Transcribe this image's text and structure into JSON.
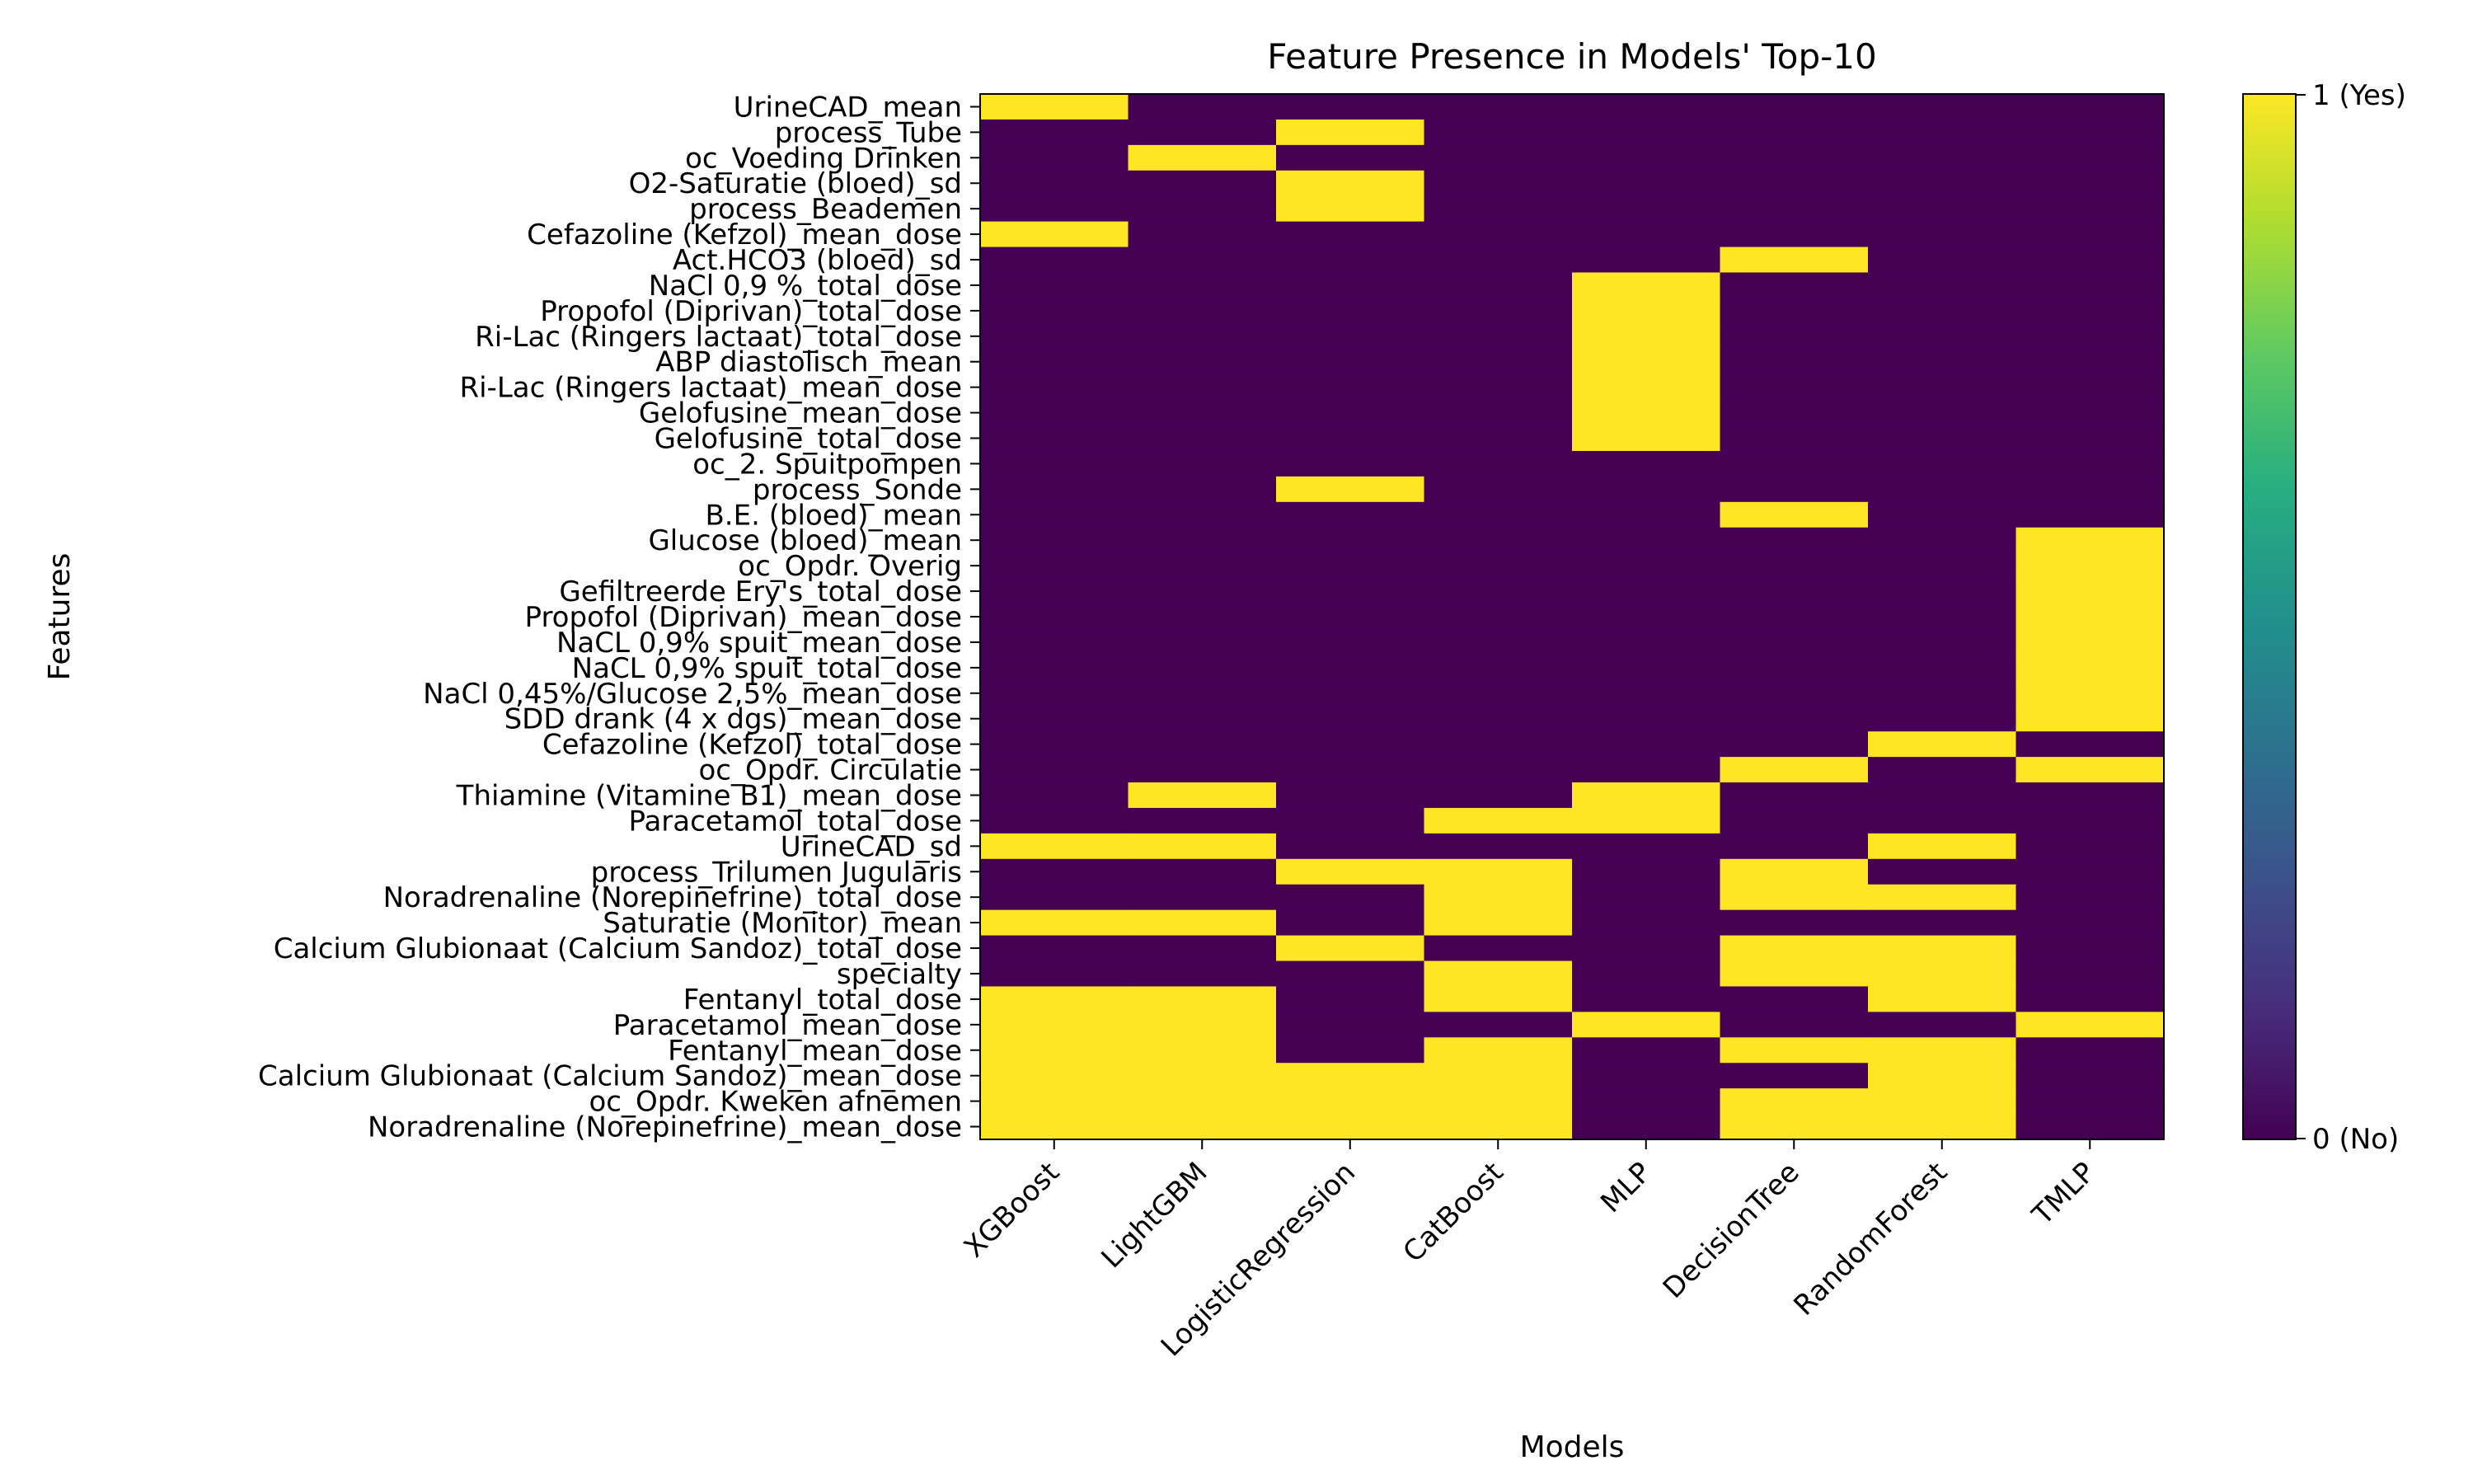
{
  "chart_data": {
    "type": "heatmap",
    "title": "Feature Presence in Models' Top-10",
    "xlabel": "Models",
    "ylabel": "Features",
    "models": [
      "XGBoost",
      "LightGBM",
      "LogisticRegression",
      "CatBoost",
      "MLP",
      "DecisionTree",
      "RandomForest",
      "TMLP"
    ],
    "features": [
      "UrineCAD_mean",
      "process_Tube",
      "oc_Voeding Drinken",
      "O2-Saturatie (bloed)_sd",
      "process_Beademen",
      "Cefazoline (Kefzol)_mean_dose",
      "Act.HCO3 (bloed)_sd",
      "NaCl 0,9 %_total_dose",
      "Propofol (Diprivan)_total_dose",
      "Ri-Lac (Ringers lactaat)_total_dose",
      "ABP diastolisch_mean",
      "Ri-Lac (Ringers lactaat)_mean_dose",
      "Gelofusine_mean_dose",
      "Gelofusine_total_dose",
      "oc_2. Spuitpompen",
      "process_Sonde",
      "B.E. (bloed)_mean",
      "Glucose (bloed)_mean",
      "oc_Opdr. Overig",
      "Gefiltreerde Ery's_total_dose",
      "Propofol (Diprivan)_mean_dose",
      "NaCL 0,9% spuit_mean_dose",
      "NaCL 0,9% spuit_total_dose",
      "NaCl 0,45%/Glucose 2,5%_mean_dose",
      "SDD drank (4 x dgs)_mean_dose",
      "Cefazoline (Kefzol)_total_dose",
      "oc_Opdr. Circulatie",
      "Thiamine (Vitamine B1)_mean_dose",
      "Paracetamol_total_dose",
      "UrineCAD_sd",
      "process_Trilumen Jugularis",
      "Noradrenaline (Norepinefrine)_total_dose",
      "Saturatie (Monitor)_mean",
      "Calcium Glubionaat (Calcium Sandoz)_total_dose",
      "specialty",
      "Fentanyl_total_dose",
      "Paracetamol_mean_dose",
      "Fentanyl_mean_dose",
      "Calcium Glubionaat (Calcium Sandoz)_mean_dose",
      "oc_Opdr. Kweken afnemen",
      "Noradrenaline (Norepinefrine)_mean_dose"
    ],
    "values": [
      [
        1,
        0,
        0,
        0,
        0,
        0,
        0,
        0
      ],
      [
        0,
        0,
        1,
        0,
        0,
        0,
        0,
        0
      ],
      [
        0,
        1,
        0,
        0,
        0,
        0,
        0,
        0
      ],
      [
        0,
        0,
        1,
        0,
        0,
        0,
        0,
        0
      ],
      [
        0,
        0,
        1,
        0,
        0,
        0,
        0,
        0
      ],
      [
        1,
        0,
        0,
        0,
        0,
        0,
        0,
        0
      ],
      [
        0,
        0,
        0,
        0,
        0,
        1,
        0,
        0
      ],
      [
        0,
        0,
        0,
        0,
        1,
        0,
        0,
        0
      ],
      [
        0,
        0,
        0,
        0,
        1,
        0,
        0,
        0
      ],
      [
        0,
        0,
        0,
        0,
        1,
        0,
        0,
        0
      ],
      [
        0,
        0,
        0,
        0,
        1,
        0,
        0,
        0
      ],
      [
        0,
        0,
        0,
        0,
        1,
        0,
        0,
        0
      ],
      [
        0,
        0,
        0,
        0,
        1,
        0,
        0,
        0
      ],
      [
        0,
        0,
        0,
        0,
        1,
        0,
        0,
        0
      ],
      [
        0,
        0,
        0,
        0,
        0,
        0,
        0,
        0
      ],
      [
        0,
        0,
        1,
        0,
        0,
        0,
        0,
        0
      ],
      [
        0,
        0,
        0,
        0,
        0,
        1,
        0,
        0
      ],
      [
        0,
        0,
        0,
        0,
        0,
        0,
        0,
        1
      ],
      [
        0,
        0,
        0,
        0,
        0,
        0,
        0,
        1
      ],
      [
        0,
        0,
        0,
        0,
        0,
        0,
        0,
        1
      ],
      [
        0,
        0,
        0,
        0,
        0,
        0,
        0,
        1
      ],
      [
        0,
        0,
        0,
        0,
        0,
        0,
        0,
        1
      ],
      [
        0,
        0,
        0,
        0,
        0,
        0,
        0,
        1
      ],
      [
        0,
        0,
        0,
        0,
        0,
        0,
        0,
        1
      ],
      [
        0,
        0,
        0,
        0,
        0,
        0,
        0,
        1
      ],
      [
        0,
        0,
        0,
        0,
        0,
        0,
        1,
        0
      ],
      [
        0,
        0,
        0,
        0,
        0,
        1,
        0,
        1
      ],
      [
        0,
        1,
        0,
        0,
        1,
        0,
        0,
        0
      ],
      [
        0,
        0,
        0,
        1,
        1,
        0,
        0,
        0
      ],
      [
        1,
        1,
        0,
        0,
        0,
        0,
        1,
        0
      ],
      [
        0,
        0,
        1,
        1,
        0,
        1,
        0,
        0
      ],
      [
        0,
        0,
        0,
        1,
        0,
        1,
        1,
        0
      ],
      [
        1,
        1,
        0,
        1,
        0,
        0,
        0,
        0
      ],
      [
        0,
        0,
        1,
        0,
        0,
        1,
        1,
        0
      ],
      [
        0,
        0,
        0,
        1,
        0,
        1,
        1,
        0
      ],
      [
        1,
        1,
        0,
        1,
        0,
        0,
        1,
        0
      ],
      [
        1,
        1,
        0,
        0,
        1,
        0,
        0,
        1
      ],
      [
        1,
        1,
        0,
        1,
        0,
        1,
        1,
        0
      ],
      [
        1,
        1,
        1,
        1,
        0,
        0,
        1,
        0
      ],
      [
        1,
        1,
        1,
        1,
        0,
        1,
        1,
        0
      ],
      [
        1,
        1,
        1,
        1,
        0,
        1,
        1,
        0
      ]
    ],
    "colormap": "viridis",
    "color_no": "#440154",
    "color_yes": "#fde725",
    "colorbar": {
      "min_label": "0 (No)",
      "max_label": "1 (Yes)",
      "range": [
        0,
        1
      ]
    }
  }
}
